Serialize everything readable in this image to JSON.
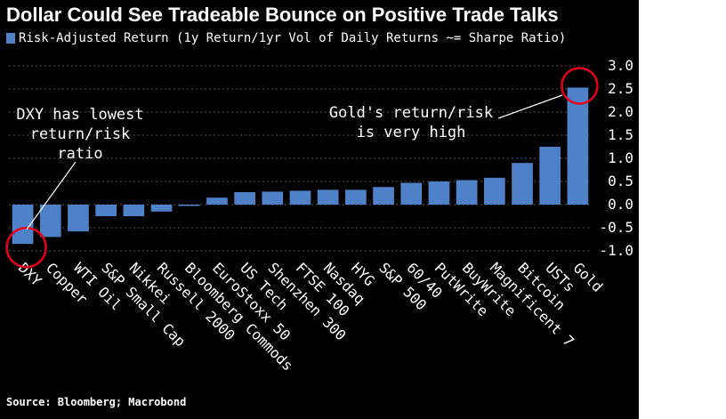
{
  "chart_data": {
    "type": "bar",
    "title": "Dollar Could See Tradeable Bounce on Positive Trade Talks",
    "categories": [
      "DXY",
      "Copper",
      "WTI Oil",
      "S&P Small Cap",
      "Nikkei",
      "Russell 2000",
      "Bloomberg Commods",
      "EuroStoxx 50",
      "US Tech",
      "Shenzhen 300",
      "FTSE 100",
      "Nasdaq",
      "HYG",
      "S&P 500",
      "60/40",
      "PutWrite",
      "BuyWrite",
      "Magnificent 7",
      "Bitcoin",
      "USTs",
      "Gold"
    ],
    "series": [
      {
        "name": "Risk-Adjusted Return (1y Return/1yr Vol of Daily Returns ~= Sharpe Ratio)",
        "values": [
          -0.85,
          -0.7,
          -0.58,
          -0.25,
          -0.25,
          -0.15,
          -0.03,
          0.15,
          0.27,
          0.28,
          0.3,
          0.32,
          0.32,
          0.38,
          0.47,
          0.5,
          0.53,
          0.58,
          0.9,
          1.25,
          2.53
        ]
      }
    ],
    "ylim": [
      -1.0,
      3.0
    ],
    "yticks": [
      "3.0",
      "2.5",
      "2.0",
      "1.5",
      "1.0",
      "0.5",
      "0.0",
      "-0.5",
      "-1.0"
    ],
    "ytick_values": [
      3.0,
      2.5,
      2.0,
      1.5,
      1.0,
      0.5,
      0.0,
      -0.5,
      -1.0
    ],
    "grid": "horizontal dashed",
    "legend": "top-left",
    "source": "Source: Bloomberg; Macrobond",
    "annotations": {
      "dxy": [
        "DXY has lowest",
        "return/risk",
        "ratio"
      ],
      "gold": [
        "Gold's return/risk",
        "is very high"
      ]
    },
    "colors": {
      "bar": "#4f81c8",
      "highlight": "#e6001e",
      "background": "#000000",
      "grid": "#555555"
    }
  }
}
